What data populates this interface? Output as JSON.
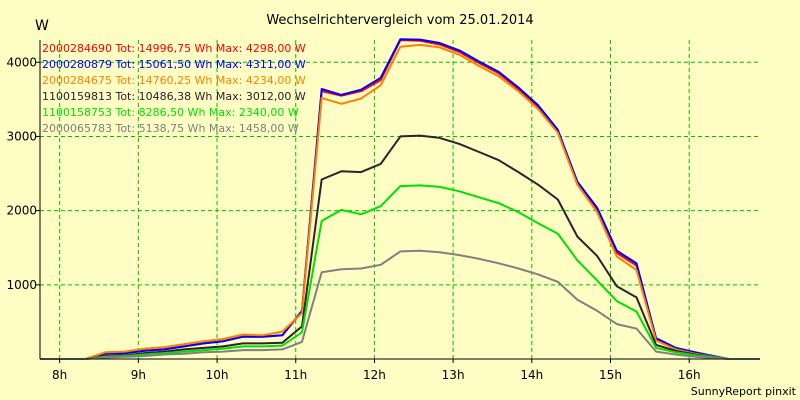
{
  "chart_data": {
    "type": "line",
    "title": "Wechselrichtervergleich vom 25.01.2014",
    "ylabel": "W",
    "xlabel": "",
    "footer": "SunnyReport pinxit",
    "xlim": [
      7.75,
      16.9
    ],
    "ylim": [
      0,
      4300
    ],
    "grid": true,
    "legend_position": "top-left",
    "x_ticks": [
      {
        "value": 8,
        "label": "8h"
      },
      {
        "value": 9,
        "label": "9h"
      },
      {
        "value": 10,
        "label": "10h"
      },
      {
        "value": 11,
        "label": "11h"
      },
      {
        "value": 12,
        "label": "12h"
      },
      {
        "value": 13,
        "label": "13h"
      },
      {
        "value": 14,
        "label": "14h"
      },
      {
        "value": 15,
        "label": "15h"
      },
      {
        "value": 16,
        "label": "16h"
      }
    ],
    "y_ticks": [
      {
        "value": 1000,
        "label": "1000"
      },
      {
        "value": 2000,
        "label": "2000"
      },
      {
        "value": 3000,
        "label": "3000"
      },
      {
        "value": 4000,
        "label": "4000"
      }
    ],
    "x": [
      7.75,
      8.33,
      8.58,
      8.83,
      9.08,
      9.33,
      9.58,
      9.83,
      10.08,
      10.33,
      10.58,
      10.83,
      11.08,
      11.33,
      11.58,
      11.83,
      12.08,
      12.33,
      12.58,
      12.83,
      13.08,
      13.33,
      13.58,
      13.83,
      14.08,
      14.33,
      14.58,
      14.83,
      15.08,
      15.33,
      15.58,
      15.83,
      16.08,
      16.5,
      16.9
    ],
    "series": [
      {
        "name": "2000284690",
        "legend": "2000284690 Tot: 14996,75 Wh Max: 4298,00 W",
        "color": "#ff0000",
        "values": [
          0,
          0,
          70,
          80,
          110,
          130,
          170,
          210,
          240,
          300,
          300,
          320,
          640,
          3610,
          3550,
          3610,
          3760,
          4298,
          4290,
          4240,
          4140,
          3990,
          3850,
          3640,
          3400,
          3070,
          2380,
          2020,
          1430,
          1260,
          270,
          140,
          80,
          0,
          0
        ]
      },
      {
        "name": "2000280879",
        "legend": "2000280879 Tot: 15061,50 Wh Max: 4311,00 W",
        "color": "#0000ff",
        "values": [
          0,
          0,
          70,
          80,
          110,
          130,
          170,
          210,
          240,
          300,
          300,
          320,
          650,
          3640,
          3560,
          3630,
          3790,
          4311,
          4305,
          4260,
          4160,
          4010,
          3870,
          3660,
          3420,
          3090,
          2390,
          2040,
          1460,
          1290,
          280,
          150,
          90,
          0,
          0
        ]
      },
      {
        "name": "2000284675",
        "legend": "2000284675 Tot: 14760,25 Wh Max: 4234,00 W",
        "color": "#ff8000",
        "values": [
          0,
          0,
          90,
          100,
          140,
          160,
          200,
          240,
          270,
          330,
          320,
          370,
          620,
          3520,
          3440,
          3510,
          3690,
          4210,
          4234,
          4200,
          4100,
          3950,
          3810,
          3610,
          3370,
          3050,
          2350,
          1980,
          1380,
          1200,
          250,
          130,
          70,
          0,
          0
        ]
      },
      {
        "name": "1100159813",
        "legend": "1100159813 Tot: 10486,38 Wh Max: 3012,00 W",
        "color": "#302030",
        "values": [
          0,
          0,
          40,
          50,
          80,
          100,
          130,
          150,
          170,
          210,
          210,
          220,
          440,
          2420,
          2530,
          2520,
          2630,
          3000,
          3012,
          2980,
          2900,
          2790,
          2680,
          2520,
          2350,
          2150,
          1650,
          1390,
          980,
          830,
          190,
          110,
          60,
          0,
          0
        ]
      },
      {
        "name": "1100158753",
        "legend": "1100158753 Tot: 8286,50 Wh Max: 2340,00 W",
        "color": "#00e000",
        "values": [
          0,
          0,
          30,
          40,
          60,
          80,
          100,
          120,
          140,
          170,
          170,
          180,
          360,
          1860,
          2010,
          1950,
          2060,
          2330,
          2340,
          2320,
          2260,
          2180,
          2100,
          1980,
          1830,
          1690,
          1330,
          1060,
          780,
          640,
          150,
          90,
          50,
          0,
          0
        ]
      },
      {
        "name": "2000065783",
        "legend": "2000065783 Tot: 5138,75 Wh Max: 1458,00 W",
        "color": "#808080",
        "values": [
          0,
          0,
          20,
          30,
          40,
          60,
          70,
          90,
          100,
          120,
          120,
          130,
          230,
          1170,
          1210,
          1220,
          1270,
          1450,
          1458,
          1440,
          1400,
          1350,
          1290,
          1220,
          1140,
          1040,
          800,
          650,
          470,
          410,
          100,
          60,
          30,
          0,
          0
        ]
      }
    ]
  }
}
